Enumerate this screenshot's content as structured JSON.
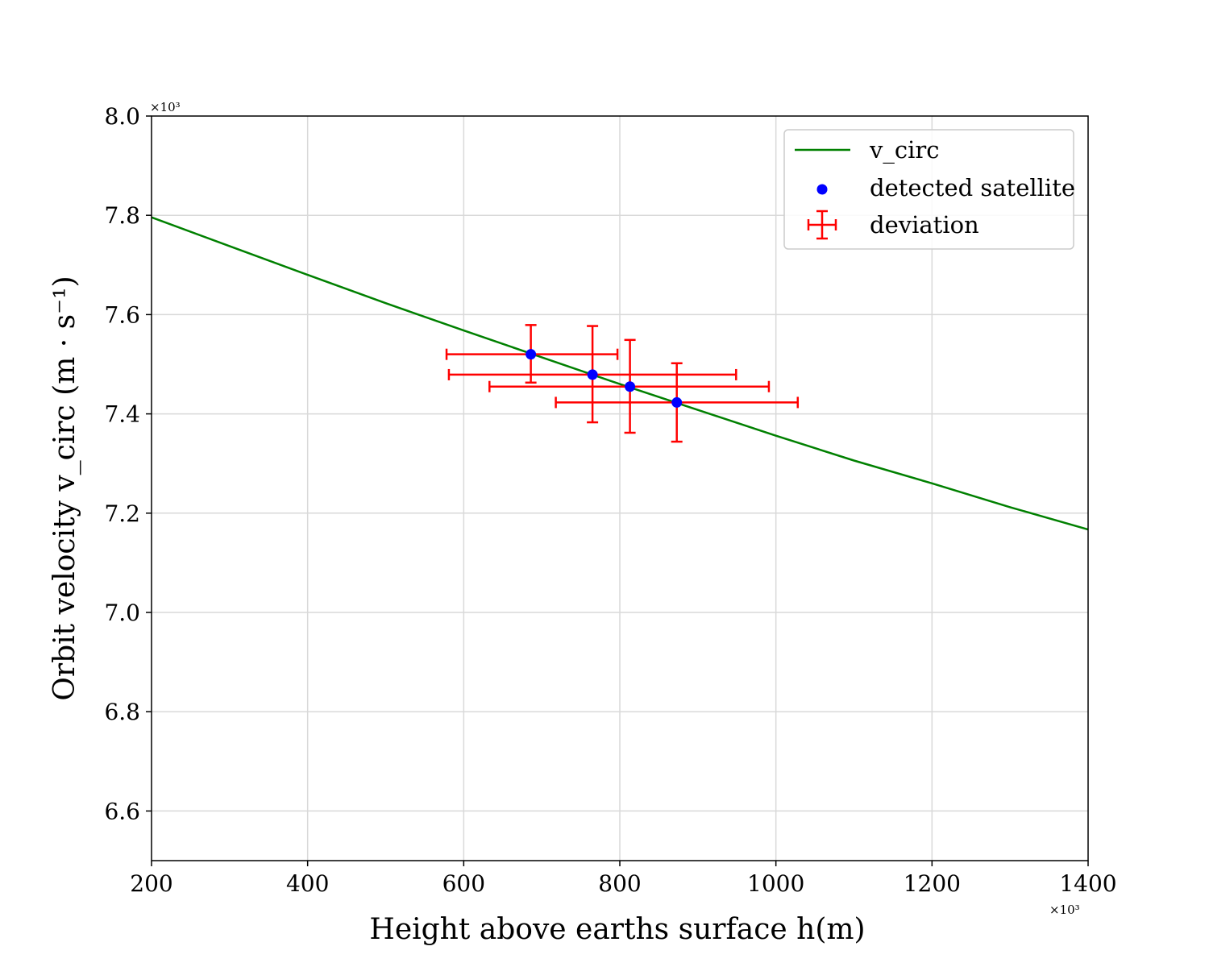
{
  "chart_data": {
    "type": "scatter",
    "xlabel": "Height above earths surface h(m)",
    "ylabel": "Orbit velocity v_circ   (m · s⁻¹)",
    "x_exponent_label": "×10³",
    "y_exponent_label": "×10³",
    "xlim": [
      200,
      1400
    ],
    "ylim": [
      6.5,
      8.0
    ],
    "x_ticks": [
      "200",
      "400",
      "600",
      "800",
      "1000",
      "1200",
      "1400"
    ],
    "y_ticks": [
      "6.6",
      "6.8",
      "7.0",
      "7.2",
      "7.4",
      "7.6",
      "7.8",
      "8.0"
    ],
    "x_tick_values": [
      200,
      400,
      600,
      800,
      1000,
      1200,
      1400
    ],
    "y_tick_values": [
      6.6,
      6.8,
      7.0,
      7.2,
      7.4,
      7.6,
      7.8,
      8.0
    ],
    "grid": true,
    "legend_position": "top-right",
    "colors": {
      "line": "#008000",
      "points": "#0000ff",
      "errorbars": "#ff0000"
    },
    "series": [
      {
        "name": "v_circ",
        "kind": "line",
        "x": [
          200,
          300,
          400,
          500,
          600,
          700,
          800,
          900,
          1000,
          1100,
          1200,
          1300,
          1400
        ],
        "y": [
          7.796,
          7.738,
          7.68,
          7.623,
          7.568,
          7.514,
          7.46,
          7.408,
          7.356,
          7.306,
          7.26,
          7.212,
          7.167
        ]
      },
      {
        "name": "detected satellite",
        "kind": "scatter",
        "x": [
          686,
          765,
          813,
          873
        ],
        "y": [
          7.52,
          7.479,
          7.455,
          7.423
        ]
      },
      {
        "name": "deviation",
        "kind": "errorbar",
        "x": [
          686,
          765,
          813,
          873
        ],
        "y": [
          7.52,
          7.479,
          7.455,
          7.423
        ],
        "x_low": [
          578,
          581,
          633,
          718
        ],
        "x_high": [
          797,
          949,
          991,
          1028
        ],
        "y_low": [
          7.463,
          7.383,
          7.362,
          7.344
        ],
        "y_high": [
          7.579,
          7.577,
          7.549,
          7.502
        ]
      }
    ]
  }
}
